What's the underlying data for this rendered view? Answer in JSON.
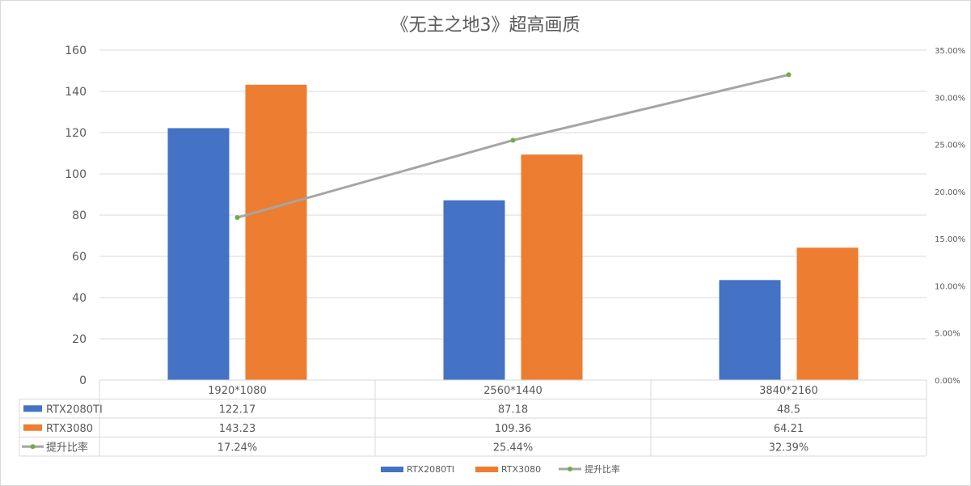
{
  "chart_data": {
    "type": "bar",
    "title": "《无主之地3》超高画质",
    "categories": [
      "1920*1080",
      "2560*1440",
      "3840*2160"
    ],
    "series": [
      {
        "name": "RTX2080TI",
        "kind": "bar",
        "color": "#4472C4",
        "values": [
          122.17,
          87.18,
          48.5
        ],
        "labels": [
          "122.17",
          "87.18",
          "48.5"
        ]
      },
      {
        "name": "RTX3080",
        "kind": "bar",
        "color": "#ED7D31",
        "values": [
          143.23,
          109.36,
          64.21
        ],
        "labels": [
          "143.23",
          "109.36",
          "64.21"
        ]
      },
      {
        "name": "提升比率",
        "kind": "line",
        "axis": "secondary",
        "color": "#A5A5A5",
        "marker_color": "#70AD47",
        "values": [
          17.24,
          25.44,
          32.39
        ],
        "labels": [
          "17.24%",
          "25.44%",
          "32.39%"
        ]
      }
    ],
    "ylim": [
      0,
      160
    ],
    "y_ticks": [
      "0",
      "20",
      "40",
      "60",
      "80",
      "100",
      "120",
      "140",
      "160"
    ],
    "y2lim": [
      0,
      35
    ],
    "y2_ticks": [
      "0.00%",
      "5.00%",
      "10.00%",
      "15.00%",
      "20.00%",
      "25.00%",
      "30.00%",
      "35.00%"
    ],
    "grid": true,
    "data_table": true,
    "legend": "bottom"
  }
}
